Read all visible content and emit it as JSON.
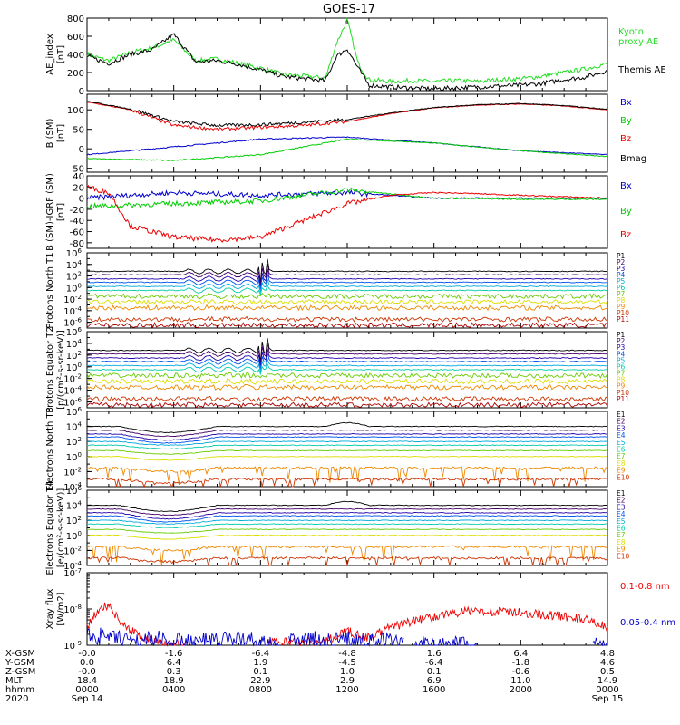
{
  "title": "GOES-17",
  "colors": {
    "black": "#000000",
    "red": "#ee0000",
    "green": "#00cc00",
    "blue": "#0000cc",
    "kyoto": "#22dd22",
    "proton_channels": [
      "#000000",
      "#440066",
      "#2200aa",
      "#0055ee",
      "#00aadd",
      "#00ccaa",
      "#66cc00",
      "#dddd00",
      "#ee8800",
      "#cc3300",
      "#aa0000"
    ],
    "electron_channels": [
      "#000000",
      "#440066",
      "#2200aa",
      "#0055ee",
      "#00aadd",
      "#00ccaa",
      "#66cc00",
      "#dddd00",
      "#ee8800",
      "#cc3300",
      "#aa0000"
    ]
  },
  "chart_data": [
    {
      "panel": "ae_index",
      "type": "line",
      "ylabel": "AE_index [nT]",
      "yticks": [
        "800",
        "600",
        "400",
        "200",
        "0"
      ],
      "ylim": [
        0,
        800
      ],
      "series": [
        {
          "name": "Kyoto proxy AE",
          "color": "green",
          "x": [
            0,
            1,
            2,
            3,
            4,
            5,
            6,
            7,
            8,
            9,
            10,
            11,
            11.5,
            12,
            12.5,
            13,
            14,
            15,
            16,
            17,
            18,
            19,
            20,
            21,
            22,
            23,
            24
          ],
          "y": [
            400,
            330,
            420,
            470,
            560,
            330,
            350,
            300,
            250,
            180,
            160,
            140,
            520,
            780,
            300,
            120,
            100,
            110,
            100,
            110,
            100,
            120,
            130,
            160,
            200,
            240,
            300
          ]
        },
        {
          "name": "Themis AE",
          "color": "black",
          "x": [
            0,
            1,
            2,
            3,
            4,
            5,
            6,
            7,
            8,
            9,
            10,
            11,
            11.5,
            12,
            12.5,
            13,
            14,
            15,
            16,
            17,
            18,
            19,
            20,
            21,
            22,
            23,
            24
          ],
          "y": [
            380,
            300,
            400,
            450,
            620,
            320,
            330,
            290,
            230,
            160,
            130,
            110,
            380,
            460,
            250,
            60,
            40,
            30,
            20,
            30,
            40,
            50,
            60,
            80,
            120,
            150,
            220
          ]
        }
      ]
    },
    {
      "panel": "b_sm",
      "type": "line",
      "ylabel": "B (SM) [nT]",
      "yticks": [
        "100",
        "50",
        "0",
        "-50"
      ],
      "ylim": [
        -60,
        140
      ],
      "series": [
        {
          "name": "Bx",
          "color": "blue",
          "x": [
            0,
            4,
            8,
            12,
            16,
            20,
            24
          ],
          "y": [
            -15,
            5,
            25,
            30,
            15,
            -5,
            -15
          ]
        },
        {
          "name": "By",
          "color": "green",
          "x": [
            0,
            4,
            8,
            12,
            16,
            20,
            24
          ],
          "y": [
            -25,
            -30,
            -15,
            25,
            15,
            -5,
            -20
          ]
        },
        {
          "name": "Bz",
          "color": "red",
          "x": [
            0,
            2,
            4,
            6,
            8,
            10,
            12,
            14,
            16,
            18,
            20,
            22,
            24
          ],
          "y": [
            120,
            100,
            60,
            50,
            55,
            60,
            70,
            90,
            105,
            112,
            115,
            110,
            100
          ]
        },
        {
          "name": "Bmag",
          "color": "black",
          "x": [
            0,
            2,
            4,
            6,
            8,
            10,
            12,
            14,
            16,
            18,
            20,
            22,
            24
          ],
          "y": [
            122,
            102,
            70,
            60,
            62,
            68,
            75,
            92,
            106,
            113,
            116,
            111,
            101
          ]
        }
      ]
    },
    {
      "panel": "b_minus_igrf",
      "type": "line",
      "ylabel": "B (SM)-IGRF (SM) [nT]",
      "yticks": [
        "40",
        "20",
        "0",
        "-20",
        "-40",
        "-60",
        "-80"
      ],
      "ylim": [
        -90,
        40
      ],
      "series": [
        {
          "name": "Bx",
          "color": "blue",
          "x": [
            0,
            4,
            8,
            12,
            16,
            20,
            24
          ],
          "y": [
            0,
            10,
            5,
            10,
            0,
            0,
            0
          ]
        },
        {
          "name": "By",
          "color": "green",
          "x": [
            0,
            4,
            8,
            12,
            16,
            20,
            24
          ],
          "y": [
            -15,
            -10,
            -5,
            15,
            0,
            -2,
            -2
          ]
        },
        {
          "name": "Bz",
          "color": "red",
          "x": [
            0,
            1,
            2,
            4,
            6,
            8,
            10,
            12,
            14,
            16,
            18,
            20,
            24
          ],
          "y": [
            20,
            10,
            -50,
            -70,
            -75,
            -70,
            -40,
            -10,
            5,
            10,
            8,
            5,
            0
          ]
        }
      ]
    },
    {
      "panel": "protons_north",
      "type": "line",
      "ylabel": "Protons North T1",
      "ylim_log10": [
        -7,
        6
      ],
      "yticks": [
        "10^6",
        "10^4",
        "10^2",
        "10^0",
        "10^-2",
        "10^-4",
        "10^-6"
      ],
      "channels": [
        "P1",
        "P2",
        "P3",
        "P4",
        "P5",
        "P6",
        "P7",
        "P8",
        "P9",
        "P10",
        "P11"
      ],
      "levels_log10": [
        2.8,
        2.2,
        1.5,
        0.9,
        0.2,
        -0.5,
        -1.5,
        -2.5,
        -3.5,
        -5.5,
        -6.5
      ]
    },
    {
      "panel": "protons_equator",
      "type": "line",
      "ylabel": "Protons Equator T2 [p/(cm²-s-sr-keV)]",
      "ylim_log10": [
        -7,
        6
      ],
      "yticks": [
        "10^6",
        "10^4",
        "10^2",
        "10^0",
        "10^-2",
        "10^-4",
        "10^-6"
      ],
      "channels": [
        "P1",
        "P2",
        "P3",
        "P4",
        "P5",
        "P6",
        "P7",
        "P8",
        "P9",
        "P10",
        "P11"
      ],
      "levels_log10": [
        2.8,
        2.2,
        1.5,
        0.9,
        0.2,
        -0.5,
        -1.5,
        -2.5,
        -3.5,
        -5.5,
        -6.5
      ]
    },
    {
      "panel": "electrons_north",
      "type": "line",
      "ylabel": "Electrons North T3",
      "ylim_log10": [
        -4,
        6
      ],
      "yticks": [
        "10^6",
        "10^4",
        "10^2",
        "10^0",
        "10^-2",
        "10^-4"
      ],
      "channels": [
        "E1",
        "E2",
        "E3",
        "E4",
        "E5",
        "E6",
        "E7",
        "E8",
        "E9",
        "E10"
      ],
      "levels_log10": [
        4.0,
        3.5,
        3.0,
        2.6,
        2.0,
        1.5,
        0.8,
        0.0,
        -1.5,
        -3.0
      ]
    },
    {
      "panel": "electrons_equator",
      "type": "line",
      "ylabel": "Electrons Equator T4 [e/(cm²-s-sr-keV)]",
      "ylim_log10": [
        -4,
        6
      ],
      "yticks": [
        "10^6",
        "10^4",
        "10^2",
        "10^0",
        "10^-2",
        "10^-4"
      ],
      "channels": [
        "E1",
        "E2",
        "E3",
        "E4",
        "E5",
        "E6",
        "E7",
        "E8",
        "E9",
        "E10"
      ],
      "levels_log10": [
        4.0,
        3.5,
        3.0,
        2.6,
        2.0,
        1.5,
        0.8,
        0.0,
        -1.5,
        -3.0
      ]
    },
    {
      "panel": "xray",
      "type": "line",
      "ylabel": "Xray flux [W/m2]",
      "ylim_log10": [
        -9,
        -7
      ],
      "yticks": [
        "10^-7",
        "10^-8",
        "10^-9"
      ],
      "series": [
        {
          "name": "0.1-0.8 nm",
          "color": "red",
          "x": [
            0,
            0.5,
            1,
            1.5,
            2,
            3,
            5,
            7,
            9,
            11,
            12,
            13,
            14,
            16,
            17,
            18,
            20,
            22,
            23,
            24
          ],
          "y_log10": [
            -8.5,
            -8.0,
            -7.9,
            -8.3,
            -8.6,
            -8.9,
            -9.0,
            -9.0,
            -8.9,
            -8.9,
            -8.6,
            -8.8,
            -8.5,
            -8.2,
            -8.1,
            -8.05,
            -8.1,
            -8.2,
            -8.3,
            -8.5
          ]
        },
        {
          "name": "0.05-0.4 nm",
          "color": "blue",
          "x": [
            0,
            1,
            2,
            3,
            4,
            5,
            6,
            7,
            9,
            10,
            11,
            12,
            13,
            14,
            15,
            16,
            17,
            18,
            20,
            22,
            24
          ],
          "y_log10": [
            -8.7,
            -8.8,
            -8.9,
            -8.8,
            -8.9,
            -8.9,
            -8.9,
            -8.8,
            -9.0,
            -8.8,
            -8.9,
            -8.85,
            -8.9,
            -8.9,
            -9.0,
            -9.0,
            -9.0,
            -9.0,
            -9.0,
            -9.0,
            -9.0
          ]
        }
      ]
    }
  ],
  "ae_legend": [
    {
      "text": "Kyoto",
      "color": "kyoto"
    },
    {
      "text": "proxy AE",
      "color": "kyoto"
    },
    {
      "text": "Themis AE",
      "color": "black"
    }
  ],
  "b_legend": [
    {
      "text": "Bx",
      "color": "blue"
    },
    {
      "text": "By",
      "color": "green"
    },
    {
      "text": "Bz",
      "color": "red"
    },
    {
      "text": "Bmag",
      "color": "black"
    }
  ],
  "igrf_legend": [
    {
      "text": "Bx",
      "color": "blue"
    },
    {
      "text": "By",
      "color": "green"
    },
    {
      "text": "Bz",
      "color": "red"
    }
  ],
  "xray_legend": [
    {
      "text": "0.1-0.8 nm",
      "color": "red"
    },
    {
      "text": "0.05-0.4 nm",
      "color": "blue"
    }
  ],
  "footer": {
    "labels": [
      "X-GSM",
      "Y-GSM",
      "Z-GSM",
      "MLT",
      "hhmm",
      "2020"
    ],
    "columns": [
      [
        "-0.0",
        "0.0",
        "-0.0",
        "18.4",
        "0000",
        "Sep 14"
      ],
      [
        "-1.6",
        "6.4",
        "0.3",
        "18.9",
        "0400",
        ""
      ],
      [
        "-6.4",
        "1.9",
        "0.1",
        "22.9",
        "0800",
        ""
      ],
      [
        "-4.8",
        "-4.5",
        "1.0",
        "2.9",
        "1200",
        ""
      ],
      [
        "1.6",
        "-6.4",
        "0.1",
        "6.9",
        "1600",
        ""
      ],
      [
        "6.4",
        "-1.8",
        "-0.6",
        "11.0",
        "2000",
        ""
      ],
      [
        "4.8",
        "4.6",
        "0.5",
        "14.9",
        "0000",
        "Sep 15"
      ]
    ]
  }
}
